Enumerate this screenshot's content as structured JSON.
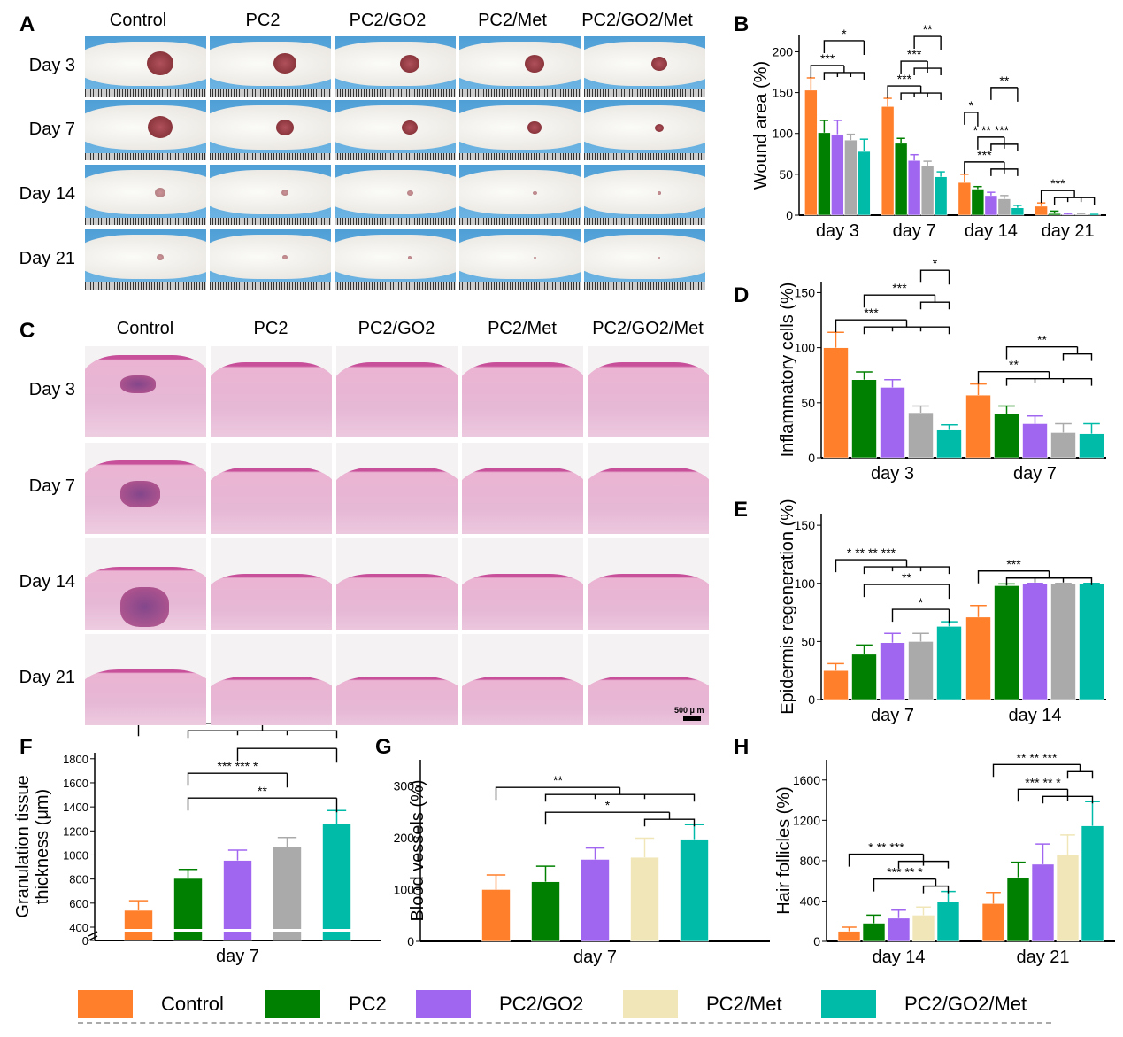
{
  "panels": {
    "A": "A",
    "B": "B",
    "C": "C",
    "D": "D",
    "E": "E",
    "F": "F",
    "G": "G",
    "H": "H"
  },
  "groups": [
    "Control",
    "PC2",
    "PC2/GO2",
    "PC2/Met",
    "PC2/GO2/Met"
  ],
  "rows": [
    "Day 3",
    "Day 7",
    "Day 14",
    "Day 21"
  ],
  "scale_bar": "500 μ m",
  "colors": {
    "Control": "#ff7f2a",
    "PC2": "#008000",
    "PC2/GO2": "#a066f0",
    "PC2/Met": "#f0e6b8",
    "PC2/Met_gray": "#aaaaaa",
    "PC2/GO2/Met": "#00bba8"
  },
  "legend": [
    {
      "label": "Control",
      "color": "#ff7f2a"
    },
    {
      "label": "PC2",
      "color": "#008000"
    },
    {
      "label": "PC2/GO2",
      "color": "#a066f0"
    },
    {
      "label": "PC2/Met",
      "color": "#f0e6b8"
    },
    {
      "label": "PC2/GO2/Met",
      "color": "#00bba8"
    }
  ],
  "chart_data": [
    {
      "id": "B",
      "type": "bar",
      "ylabel": "Wound area (%)",
      "ylim": [
        0,
        220
      ],
      "yticks": [
        0,
        50,
        100,
        150,
        200
      ],
      "categories": [
        "day 3",
        "day 7",
        "day 14",
        "day 21"
      ],
      "fourth_color": "#aaaaaa",
      "series": [
        {
          "values": [
            153,
            133,
            40,
            11
          ],
          "err": [
            15,
            10,
            10,
            4
          ]
        },
        {
          "values": [
            101,
            88,
            32,
            2
          ],
          "err": [
            15,
            6,
            3,
            3
          ]
        },
        {
          "values": [
            99,
            67,
            24,
            1
          ],
          "err": [
            17,
            7,
            4,
            1
          ]
        },
        {
          "values": [
            92,
            60,
            20,
            1
          ],
          "err": [
            7,
            6,
            4,
            1
          ]
        },
        {
          "values": [
            78,
            47,
            9,
            0.5
          ],
          "err": [
            15,
            6,
            3,
            0.5
          ]
        }
      ],
      "annotations": [
        {
          "group": 0,
          "from": 0,
          "to": [
            1,
            2,
            3,
            4
          ],
          "text": "***"
        },
        {
          "group": 0,
          "from": 1,
          "to": [
            4
          ],
          "text": "*"
        },
        {
          "group": 1,
          "from": 0,
          "to": [
            1,
            2,
            3,
            4
          ],
          "text": "***"
        },
        {
          "group": 1,
          "from": 1,
          "to": [
            2,
            3,
            4
          ],
          "text": "***"
        },
        {
          "group": 1,
          "from": 2,
          "to": [
            4
          ],
          "text": "**"
        },
        {
          "group": 2,
          "from": 0,
          "to": [
            2,
            3,
            4
          ],
          "text": "***"
        },
        {
          "group": 2,
          "from": 1,
          "to": [
            2,
            3,
            4
          ],
          "text": "*  ** ***"
        },
        {
          "group": 2,
          "from": 0,
          "to": [
            1
          ],
          "text": "*"
        },
        {
          "group": 2,
          "from": 2,
          "to": [
            4
          ],
          "text": "**"
        },
        {
          "group": 3,
          "from": 0,
          "to": [
            1,
            2,
            3,
            4
          ],
          "text": "***"
        }
      ]
    },
    {
      "id": "D",
      "type": "bar",
      "ylabel": "Inflammatory cells (%)",
      "ylim": [
        0,
        160
      ],
      "yticks": [
        0,
        50,
        100,
        150
      ],
      "categories": [
        "day 3",
        "day 7"
      ],
      "fourth_color": "#aaaaaa",
      "series": [
        {
          "values": [
            100,
            57
          ],
          "err": [
            14,
            10
          ]
        },
        {
          "values": [
            71,
            40
          ],
          "err": [
            7,
            7
          ]
        },
        {
          "values": [
            64,
            31
          ],
          "err": [
            7,
            7
          ]
        },
        {
          "values": [
            41,
            23
          ],
          "err": [
            6,
            8
          ]
        },
        {
          "values": [
            26,
            22
          ],
          "err": [
            4,
            9
          ]
        }
      ],
      "annotations": [
        {
          "group": 0,
          "from": 0,
          "to": [
            1,
            2,
            3,
            4
          ],
          "text": "***"
        },
        {
          "group": 0,
          "from": 1,
          "to": [
            3,
            4
          ],
          "text": "***"
        },
        {
          "group": 0,
          "from": 3,
          "to": [
            4
          ],
          "text": "*"
        },
        {
          "group": 1,
          "from": 0,
          "to": [
            1,
            2,
            3,
            4
          ],
          "text": "**"
        },
        {
          "group": 1,
          "from": 1,
          "to": [
            3,
            4
          ],
          "text": "**"
        }
      ]
    },
    {
      "id": "E",
      "type": "bar",
      "ylabel": "Epidermis  regeneration (%)",
      "ylim": [
        0,
        160
      ],
      "yticks": [
        0,
        50,
        100,
        150
      ],
      "categories": [
        "day 7",
        "day 14"
      ],
      "fourth_color": "#aaaaaa",
      "series": [
        {
          "values": [
            25,
            71
          ],
          "err": [
            6,
            10
          ]
        },
        {
          "values": [
            39,
            98
          ],
          "err": [
            8,
            1.5
          ]
        },
        {
          "values": [
            49,
            100
          ],
          "err": [
            8,
            0
          ]
        },
        {
          "values": [
            50,
            100
          ],
          "err": [
            7,
            0
          ]
        },
        {
          "values": [
            63,
            100
          ],
          "err": [
            4,
            0
          ]
        }
      ],
      "annotations": [
        {
          "group": 0,
          "from": 2,
          "to": [
            4
          ],
          "text": "*"
        },
        {
          "group": 0,
          "from": 1,
          "to": [
            4
          ],
          "text": "**"
        },
        {
          "group": 0,
          "from": 0,
          "to": [
            1,
            2,
            3,
            4
          ],
          "text": "*  **  ** ***"
        },
        {
          "group": 1,
          "from": 0,
          "to": [
            1,
            2,
            3,
            4
          ],
          "text": "***"
        }
      ]
    },
    {
      "id": "F",
      "type": "bar",
      "ylabel": "Granulation tissue thickness (μm)",
      "ylim": [
        400,
        1850
      ],
      "axis_break": [
        0,
        400
      ],
      "yticks": [
        400,
        600,
        800,
        1000,
        1200,
        1400,
        1600,
        1800
      ],
      "categories": [
        "day 7"
      ],
      "fourth_color": "#aaaaaa",
      "series": [
        {
          "values": [
            540
          ],
          "err": [
            80
          ]
        },
        {
          "values": [
            805
          ],
          "err": [
            75
          ]
        },
        {
          "values": [
            955
          ],
          "err": [
            85
          ]
        },
        {
          "values": [
            1065
          ],
          "err": [
            80
          ]
        },
        {
          "values": [
            1260
          ],
          "err": [
            110
          ]
        }
      ],
      "annotations": [
        {
          "group": 0,
          "from": 1,
          "to": [
            4
          ],
          "text": "**"
        },
        {
          "group": 0,
          "from": 1,
          "to": [
            3
          ],
          "text": "***   ***   *"
        },
        {
          "group": 0,
          "from": 2,
          "to": [
            4
          ],
          "text": ""
        },
        {
          "group": 0,
          "from": 0,
          "to": [
            1,
            2,
            3,
            4
          ],
          "text": "**"
        }
      ]
    },
    {
      "id": "G",
      "type": "bar",
      "ylabel": "Blood vessels (%)",
      "ylim": [
        0,
        350
      ],
      "yticks": [
        0,
        100,
        200,
        300
      ],
      "categories": [
        "day 7"
      ],
      "fourth_color": "#f0e6b8",
      "series": [
        {
          "values": [
            100
          ],
          "err": [
            28
          ]
        },
        {
          "values": [
            115
          ],
          "err": [
            30
          ]
        },
        {
          "values": [
            158
          ],
          "err": [
            22
          ]
        },
        {
          "values": [
            162
          ],
          "err": [
            37
          ]
        },
        {
          "values": [
            197
          ],
          "err": [
            28
          ]
        }
      ],
      "annotations": [
        {
          "group": 0,
          "from": 1,
          "to": [
            3,
            4
          ],
          "text": "*"
        },
        {
          "group": 0,
          "from": 0,
          "to": [
            1,
            2,
            3,
            4
          ],
          "text": "**"
        }
      ]
    },
    {
      "id": "H",
      "type": "bar",
      "ylabel": "Hair follicles (%)",
      "ylim": [
        0,
        1800
      ],
      "yticks": [
        0,
        400,
        800,
        1200,
        1600
      ],
      "categories": [
        "day 14",
        "day 21"
      ],
      "fourth_color": "#f0e6b8",
      "series": [
        {
          "values": [
            100,
            375
          ],
          "err": [
            40,
            110
          ]
        },
        {
          "values": [
            180,
            635
          ],
          "err": [
            80,
            150
          ]
        },
        {
          "values": [
            230,
            765
          ],
          "err": [
            80,
            200
          ]
        },
        {
          "values": [
            260,
            855
          ],
          "err": [
            80,
            200
          ]
        },
        {
          "values": [
            395,
            1145
          ],
          "err": [
            100,
            240
          ]
        }
      ],
      "annotations": [
        {
          "group": 0,
          "from": 1,
          "to": [
            3,
            4
          ],
          "text": "*** **  *"
        },
        {
          "group": 0,
          "from": 0,
          "to": [
            2,
            3,
            4
          ],
          "text": "*  ** ***"
        },
        {
          "group": 1,
          "from": 1,
          "to": [
            2,
            3,
            4
          ],
          "text": "*** **  *"
        },
        {
          "group": 1,
          "from": 0,
          "to": [
            3,
            4
          ],
          "text": "** ** ***"
        }
      ]
    }
  ]
}
